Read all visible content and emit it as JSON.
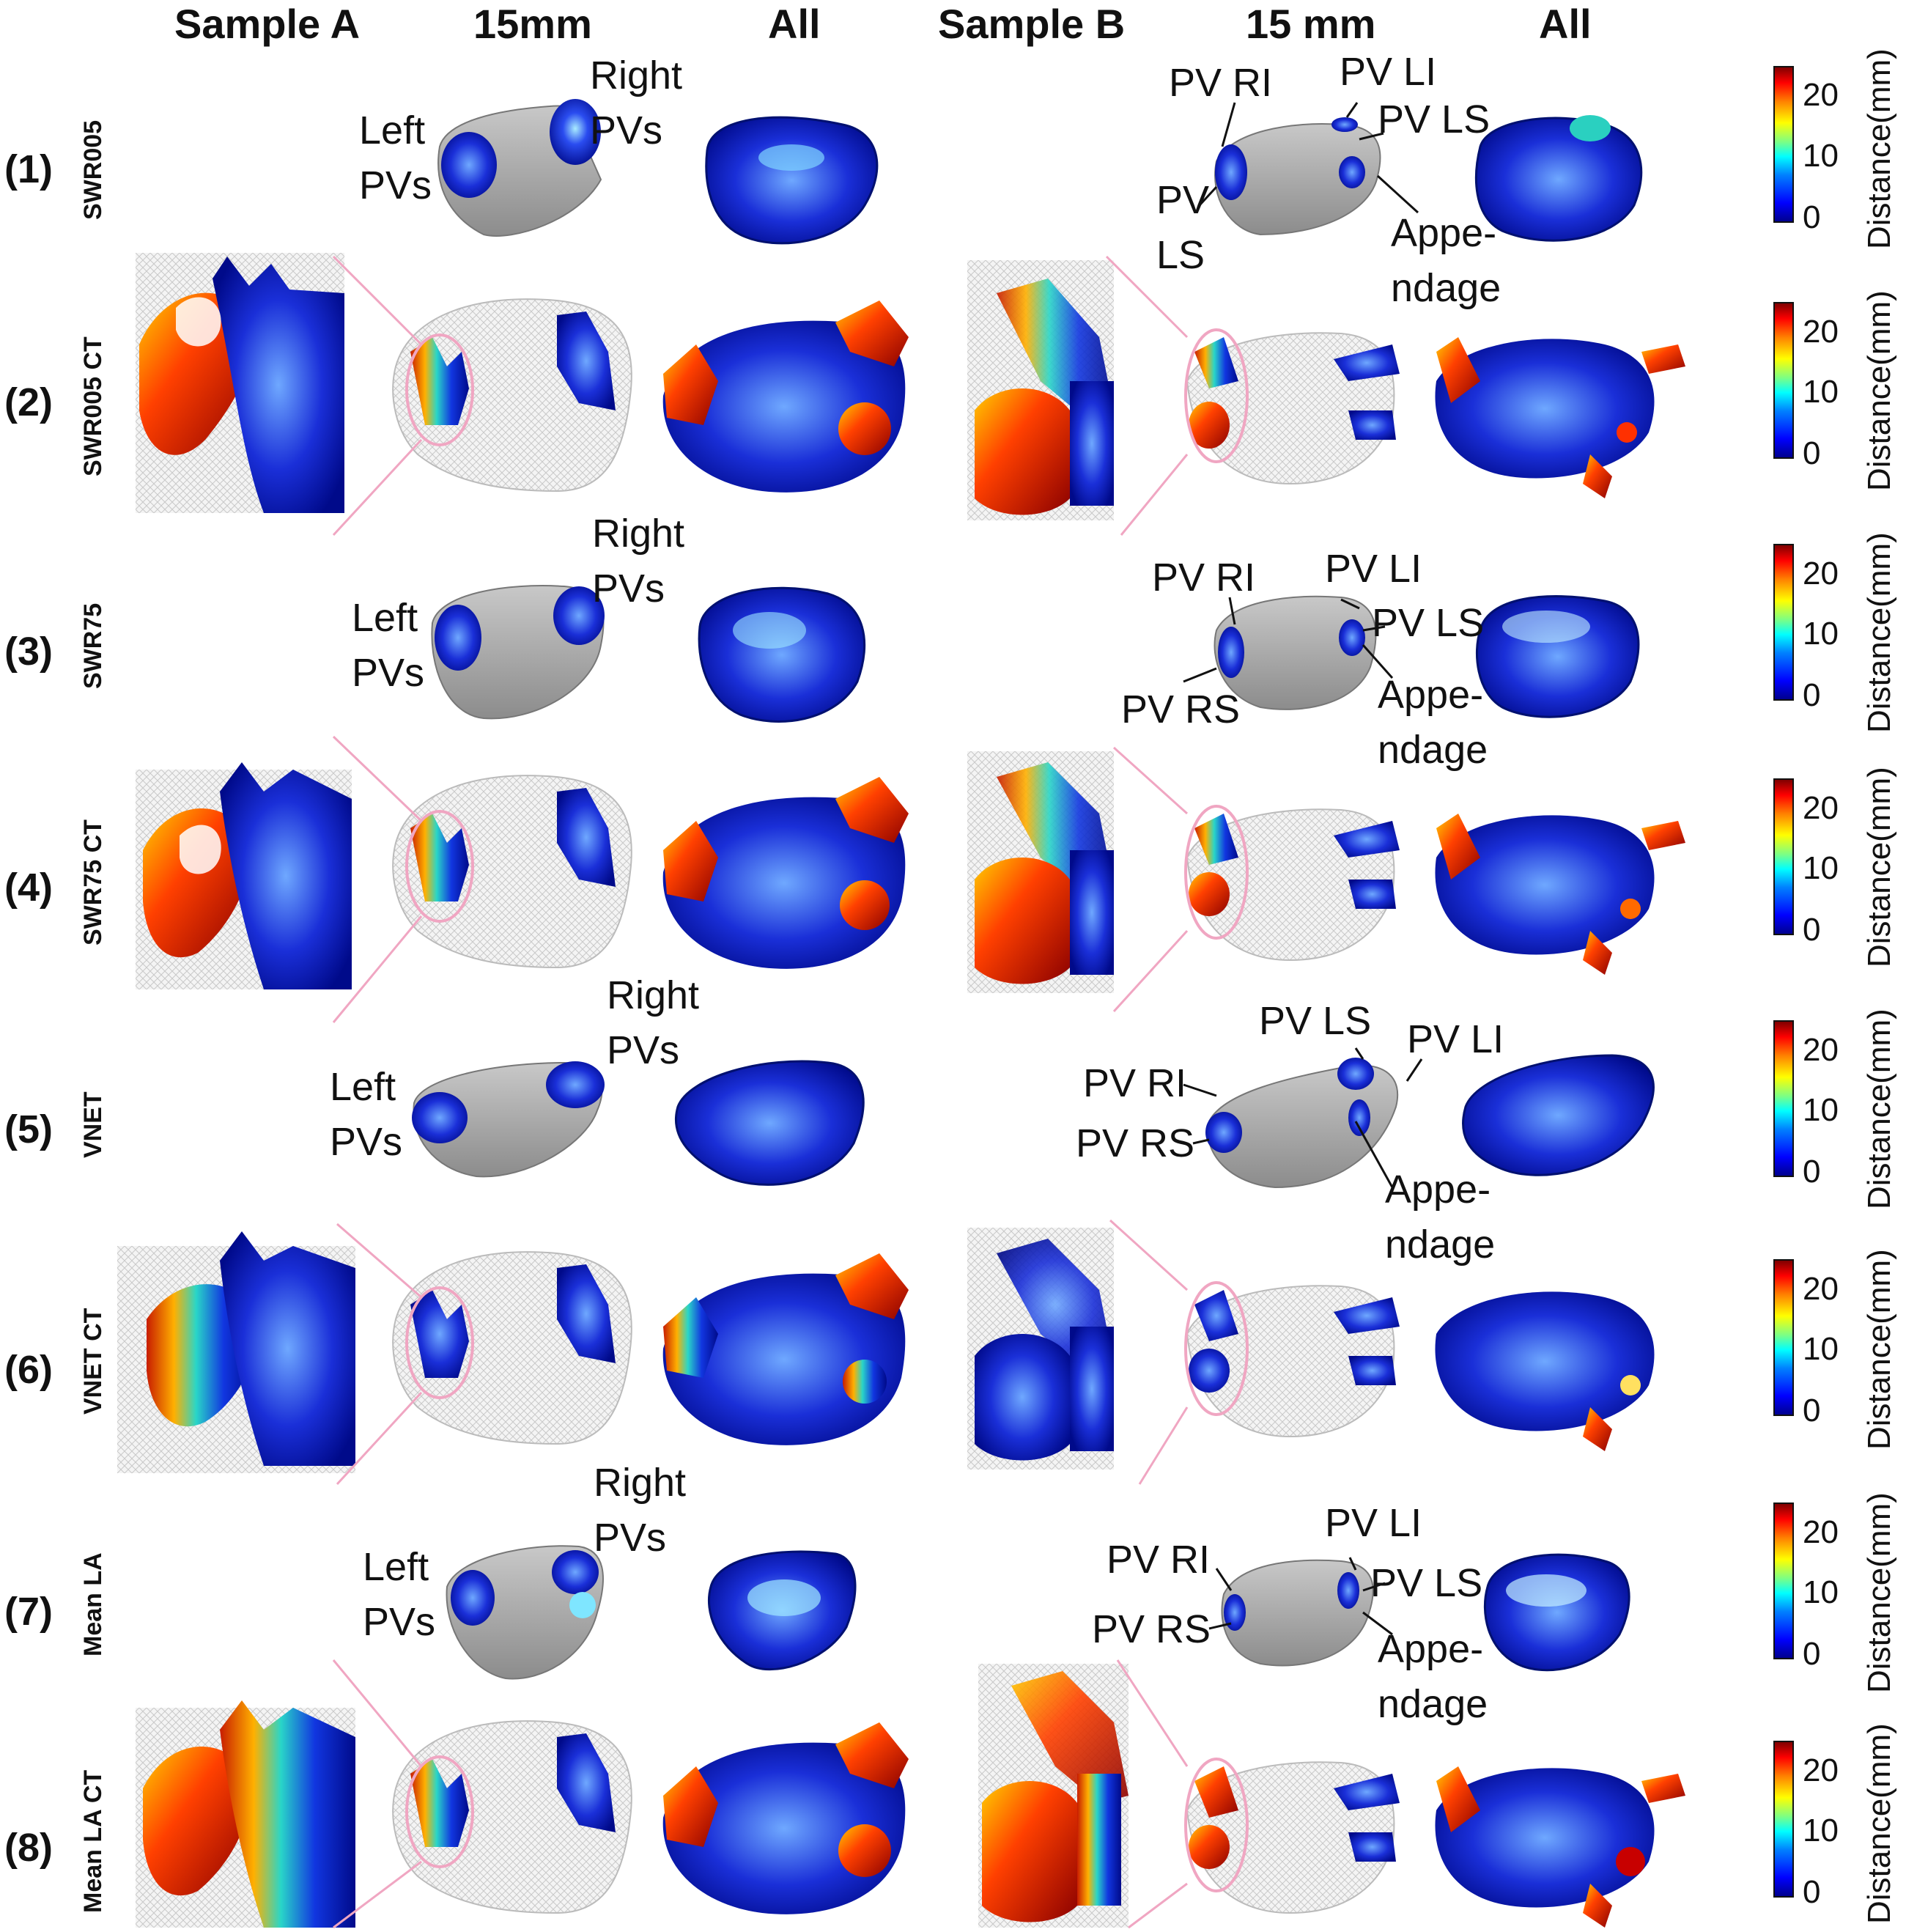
{
  "columns": [
    "Sample  A",
    "15mm",
    "All",
    "Sample  B",
    "15 mm",
    "All"
  ],
  "rows": [
    {
      "num": "(1)",
      "name": "SWR005"
    },
    {
      "num": "(2)",
      "name": "SWR005 CT"
    },
    {
      "num": "(3)",
      "name": "SWR75"
    },
    {
      "num": "(4)",
      "name": "SWR75 CT"
    },
    {
      "num": "(5)",
      "name": "VNET"
    },
    {
      "num": "(6)",
      "name": "VNET CT"
    },
    {
      "num": "(7)",
      "name": "Mean LA"
    },
    {
      "num": "(8)",
      "name": "Mean LA CT"
    }
  ],
  "annotations": {
    "left_pvs": [
      "Left",
      "PVs"
    ],
    "right_pvs": [
      "Right",
      "PVs"
    ],
    "appendage": [
      "Appe-",
      "ndage"
    ],
    "pv_ri": "PV RI",
    "pv_li": "PV LI",
    "pv_ls": "PV LS",
    "pv_rs": "PV RS",
    "pv_ls_split": [
      "PV",
      "LS"
    ]
  },
  "colorbar": {
    "label": "Distance(mm)",
    "ticks": [
      "20",
      "10",
      "0"
    ],
    "colormap": "jet",
    "colors": [
      "#00008f",
      "#0000ff",
      "#00ffff",
      "#ffff00",
      "#ff0000",
      "#800000"
    ]
  },
  "colors": {
    "mesh_gray": "#a9a9a9",
    "wire_gray": "#d6d6d6",
    "zoom_pink": "#f0a6c2"
  }
}
